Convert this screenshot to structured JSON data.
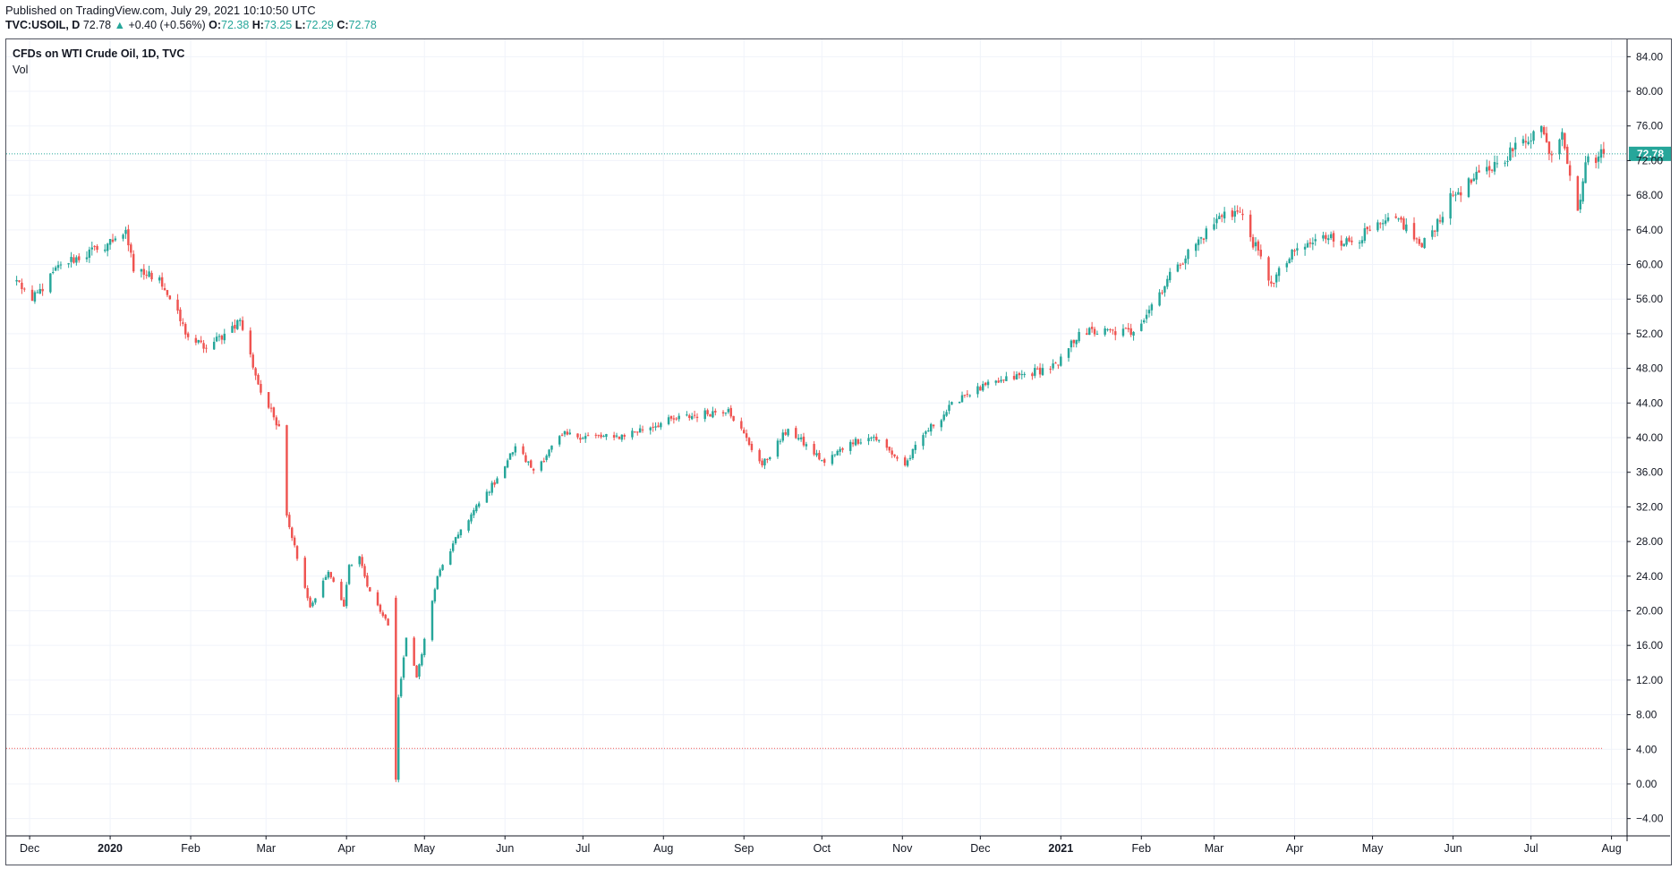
{
  "header": {
    "published": "Published on TradingView.com, July 29, 2021 10:10:50 UTC",
    "symbol": "TVC:USOIL, D",
    "last": "72.78",
    "change": "+0.40 (+0.56%)",
    "open_label": "O:",
    "open": "72.38",
    "high_label": "H:",
    "high": "73.25",
    "low_label": "L:",
    "low": "72.29",
    "close_label": "C:",
    "close": "72.78"
  },
  "legend": {
    "series_title": "CFDs on WTI Crude Oil, 1D, TVC",
    "indicator": "Vol"
  },
  "colors": {
    "up": "#26a69a",
    "down": "#ef5350",
    "grid": "#f0f3fa",
    "last_price_line": "#26a69a",
    "low_marker_line": "#ef5350"
  },
  "chart_data": {
    "type": "candlestick",
    "title": "CFDs on WTI Crude Oil, 1D, TVC",
    "symbol": "TVC:USOIL",
    "interval": "1D",
    "ylim": [
      -6,
      86
    ],
    "y_ticks": [
      84,
      80,
      76,
      72,
      68,
      64,
      60,
      56,
      52,
      48,
      44,
      40,
      36,
      32,
      28,
      24,
      20,
      16,
      12,
      8,
      4,
      0,
      -4
    ],
    "y_tick_labels": [
      "84.00",
      "80.00",
      "76.00",
      "72.00",
      "68.00",
      "64.00",
      "60.00",
      "56.00",
      "52.00",
      "48.00",
      "44.00",
      "40.00",
      "36.00",
      "32.00",
      "28.00",
      "24.00",
      "20.00",
      "16.00",
      "12.00",
      "8.00",
      "4.00",
      "0.00",
      "−4.00"
    ],
    "x_labels": [
      "Dec",
      "2020",
      "Feb",
      "Mar",
      "Apr",
      "May",
      "Jun",
      "Jul",
      "Aug",
      "Sep",
      "Oct",
      "Nov",
      "Dec",
      "2021",
      "Feb",
      "Mar",
      "Apr",
      "May",
      "Jun",
      "Jul",
      "Aug"
    ],
    "x_label_bold": [
      false,
      true,
      false,
      false,
      false,
      false,
      false,
      false,
      false,
      false,
      false,
      false,
      false,
      true,
      false,
      false,
      false,
      false,
      false,
      false,
      false
    ],
    "last_price": 72.78,
    "last_price_label": "72.78",
    "period_low_marker": 4.1,
    "grid": true,
    "legend": "top-left",
    "anchors": [
      [
        "2019-11-26",
        58.2
      ],
      [
        "2019-12-02",
        55.8
      ],
      [
        "2019-12-13",
        60.0
      ],
      [
        "2019-12-27",
        61.7
      ],
      [
        "2020-01-03",
        63.0
      ],
      [
        "2020-01-07",
        64.0
      ],
      [
        "2020-01-10",
        59.2
      ],
      [
        "2020-01-20",
        58.5
      ],
      [
        "2020-01-31",
        51.6
      ],
      [
        "2020-02-07",
        50.3
      ],
      [
        "2020-02-14",
        52.0
      ],
      [
        "2020-02-20",
        53.6
      ],
      [
        "2020-02-28",
        45.2
      ],
      [
        "2020-03-06",
        41.3
      ],
      [
        "2020-03-09",
        31.0
      ],
      [
        "2020-03-18",
        20.4
      ],
      [
        "2020-03-25",
        24.5
      ],
      [
        "2020-03-31",
        20.5
      ],
      [
        "2020-04-02",
        25.3
      ],
      [
        "2020-04-06",
        26.3
      ],
      [
        "2020-04-09",
        22.8
      ],
      [
        "2020-04-17",
        18.3
      ],
      [
        "2020-04-20",
        0.5
      ],
      [
        "2020-04-21",
        10.0
      ],
      [
        "2020-04-24",
        16.9
      ],
      [
        "2020-04-28",
        12.3
      ],
      [
        "2020-05-06",
        24.0
      ],
      [
        "2020-05-15",
        29.4
      ],
      [
        "2020-05-29",
        35.3
      ],
      [
        "2020-06-05",
        39.0
      ],
      [
        "2020-06-12",
        36.2
      ],
      [
        "2020-06-23",
        40.3
      ],
      [
        "2020-07-13",
        40.0
      ],
      [
        "2020-08-05",
        42.1
      ],
      [
        "2020-08-26",
        43.3
      ],
      [
        "2020-09-08",
        36.8
      ],
      [
        "2020-09-18",
        41.0
      ],
      [
        "2020-10-02",
        37.1
      ],
      [
        "2020-10-12",
        39.5
      ],
      [
        "2020-10-21",
        40.1
      ],
      [
        "2020-11-02",
        36.8
      ],
      [
        "2020-11-09",
        40.3
      ],
      [
        "2020-11-24",
        44.9
      ],
      [
        "2020-12-10",
        46.6
      ],
      [
        "2020-12-31",
        48.4
      ],
      [
        "2021-01-08",
        52.2
      ],
      [
        "2021-01-29",
        52.2
      ],
      [
        "2021-02-15",
        60.0
      ],
      [
        "2021-03-05",
        66.1
      ],
      [
        "2021-03-11",
        66.0
      ],
      [
        "2021-03-23",
        57.8
      ],
      [
        "2021-04-01",
        61.5
      ],
      [
        "2021-04-15",
        63.5
      ],
      [
        "2021-04-20",
        62.4
      ],
      [
        "2021-05-11",
        65.3
      ],
      [
        "2021-05-20",
        62.0
      ],
      [
        "2021-06-01",
        68.0
      ],
      [
        "2021-06-18",
        71.7
      ],
      [
        "2021-07-05",
        76.0
      ],
      [
        "2021-07-08",
        72.8
      ],
      [
        "2021-07-13",
        75.3
      ],
      [
        "2021-07-19",
        66.2
      ],
      [
        "2021-07-22",
        71.8
      ],
      [
        "2021-07-29",
        72.78
      ]
    ],
    "anchors_note": "approximate daily closes (USD) read off the chart; intermediate days are interpolated"
  }
}
